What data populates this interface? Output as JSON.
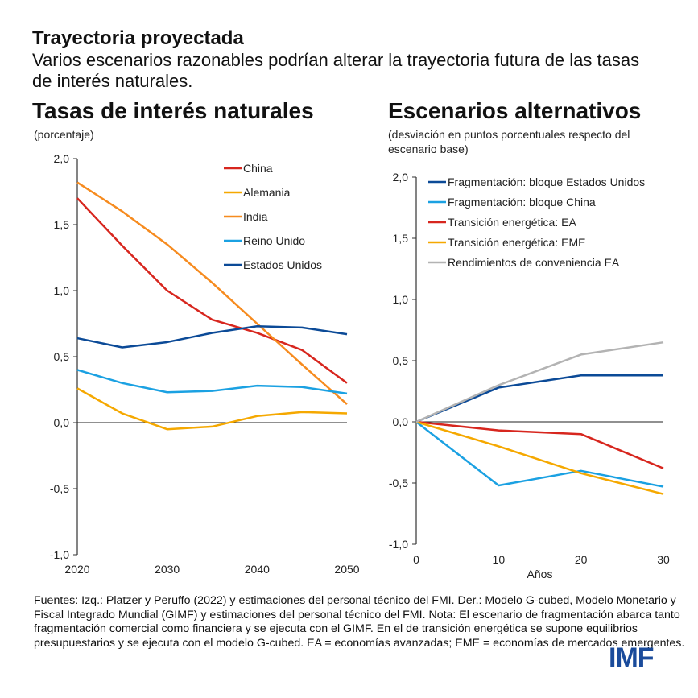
{
  "title": "Trayectoria proyectada",
  "subtitle": "Varios escenarios razonables podrían alterar la trayectoria futura de las tasas de interés naturales.",
  "notes": "Fuentes: Izq.: Platzer y Peruffo (2022) y estimaciones del personal técnico del FMI. Der.: Modelo G-cubed, Modelo Monetario y Fiscal Integrado Mundial (GIMF) y estimaciones del personal técnico del FMI. Nota: El escenario de fragmentación abarca tanto fragmentación comercial como financiera y se ejecuta con el GIMF. En el de transición energética se supone equilibrios presupuestarios y se ejecuta con el modelo G-cubed. EA = economías avanzadas; EME = economías de mercados emergentes.",
  "logo": "IMF",
  "chart_data": [
    {
      "type": "line",
      "title": "Tasas de interés naturales",
      "ylabel": "(porcentaje)",
      "xlabel": "",
      "x": [
        2020,
        2025,
        2030,
        2035,
        2040,
        2045,
        2050
      ],
      "xticks": [
        "2020",
        "2030",
        "2040",
        "2050"
      ],
      "xtick_values": [
        2020,
        2030,
        2040,
        2050
      ],
      "yticks": [
        "2,0",
        "1,5",
        "1,0",
        "0,5",
        "0,0",
        "-0,5",
        "-1,0"
      ],
      "ytick_values": [
        2,
        1.5,
        1,
        0.5,
        0,
        -0.5,
        -1
      ],
      "ylim": [
        -1,
        2
      ],
      "xlim": [
        2020,
        2050
      ],
      "legend": "top-right",
      "series": [
        {
          "name": "China",
          "color": "#d7261e",
          "values": [
            1.7,
            1.34,
            1.0,
            0.78,
            0.68,
            0.55,
            0.3
          ]
        },
        {
          "name": "Alemania",
          "color": "#f5a800",
          "values": [
            0.26,
            0.07,
            -0.05,
            -0.03,
            0.05,
            0.08,
            0.07
          ]
        },
        {
          "name": "India",
          "color": "#f68b1f",
          "values": [
            1.82,
            1.6,
            1.35,
            1.06,
            0.75,
            0.44,
            0.14
          ]
        },
        {
          "name": "Reino Unido",
          "color": "#1ba1e2",
          "values": [
            0.4,
            0.3,
            0.23,
            0.24,
            0.28,
            0.27,
            0.22
          ]
        },
        {
          "name": "Estados Unidos",
          "color": "#0b4a97",
          "values": [
            0.64,
            0.57,
            0.61,
            0.68,
            0.73,
            0.72,
            0.67
          ]
        }
      ]
    },
    {
      "type": "line",
      "title": "Escenarios alternativos",
      "ylabel": "(desviación en puntos porcentuales respecto del escenario base)",
      "xlabel": "Años",
      "x": [
        0,
        10,
        20,
        30
      ],
      "xticks": [
        "0",
        "10",
        "20",
        "30"
      ],
      "xtick_values": [
        0,
        10,
        20,
        30
      ],
      "yticks": [
        "2,0",
        "1,5",
        "1,0",
        "0,5",
        "0,0",
        "-0,5",
        "-1,0"
      ],
      "ytick_values": [
        2,
        1.5,
        1,
        0.5,
        0,
        -0.5,
        -1
      ],
      "ylim": [
        -1,
        2
      ],
      "xlim": [
        0,
        30
      ],
      "legend": "top-right",
      "series": [
        {
          "name": "Fragmentación: bloque Estados Unidos",
          "color": "#0b4a97",
          "values": [
            0,
            0.28,
            0.38,
            0.38
          ]
        },
        {
          "name": "Fragmentación: bloque China",
          "color": "#1ba1e2",
          "values": [
            0,
            -0.52,
            -0.4,
            -0.53
          ]
        },
        {
          "name": "Transición energética: EA",
          "color": "#d7261e",
          "values": [
            0,
            -0.07,
            -0.1,
            -0.38
          ]
        },
        {
          "name": "Transición energética: EME",
          "color": "#f5a800",
          "values": [
            0,
            -0.2,
            -0.42,
            -0.59
          ]
        },
        {
          "name": "Rendimientos de conveniencia EA",
          "color": "#b3b3b3",
          "values": [
            0,
            0.3,
            0.55,
            0.65
          ]
        }
      ]
    }
  ]
}
